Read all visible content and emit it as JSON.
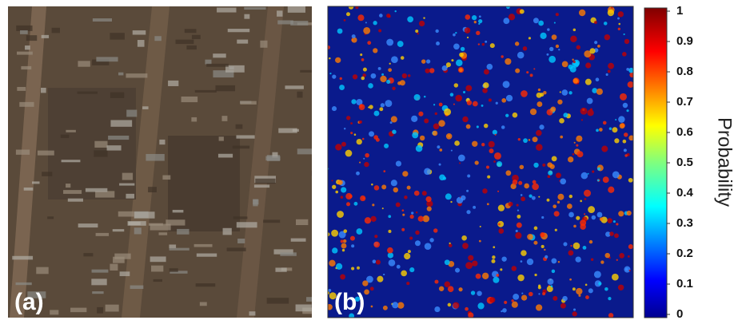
{
  "panels": [
    {
      "label": "(a)"
    },
    {
      "label": "(b)"
    }
  ],
  "colorbar": {
    "label": "Probability",
    "lim": [
      0,
      1
    ],
    "ticks": [
      0,
      0.1,
      0.2,
      0.3,
      0.4,
      0.5,
      0.6,
      0.7,
      0.8,
      0.9,
      1
    ]
  }
}
